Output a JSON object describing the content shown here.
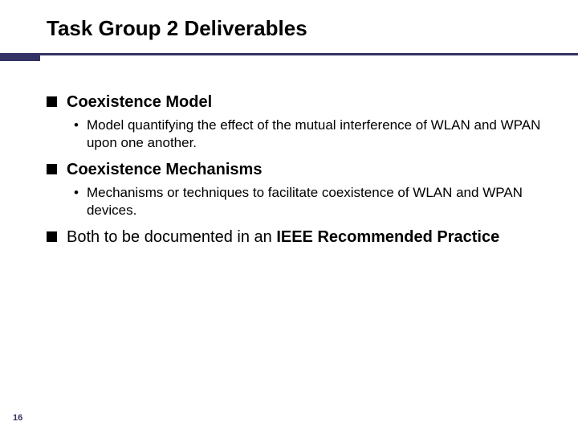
{
  "slide": {
    "title": "Task Group 2 Deliverables",
    "page_number": "16",
    "colors": {
      "rule": "#333366",
      "background": "#ffffff",
      "text": "#000000",
      "page_number": "#333366"
    },
    "typography": {
      "title_fontsize": 26,
      "level1_fontsize": 20,
      "level2_fontsize": 17,
      "page_number_fontsize": 11,
      "font_family": "Arial"
    },
    "bullets": {
      "level1_style": "square",
      "level1_size": 13,
      "level2_style": "dot"
    },
    "items": [
      {
        "text": "Coexistence Model",
        "bold": true,
        "sub": [
          "Model quantifying the effect of the mutual interference of WLAN and WPAN upon one another."
        ]
      },
      {
        "text": "Coexistence Mechanisms",
        "bold": true,
        "sub": [
          "Mechanisms or techniques to facilitate coexistence of WLAN and WPAN devices."
        ]
      },
      {
        "text_parts": [
          "Both to be documented in an ",
          "IEEE Recommended Practice"
        ],
        "bold_parts": [
          false,
          true
        ],
        "sub": []
      }
    ]
  }
}
